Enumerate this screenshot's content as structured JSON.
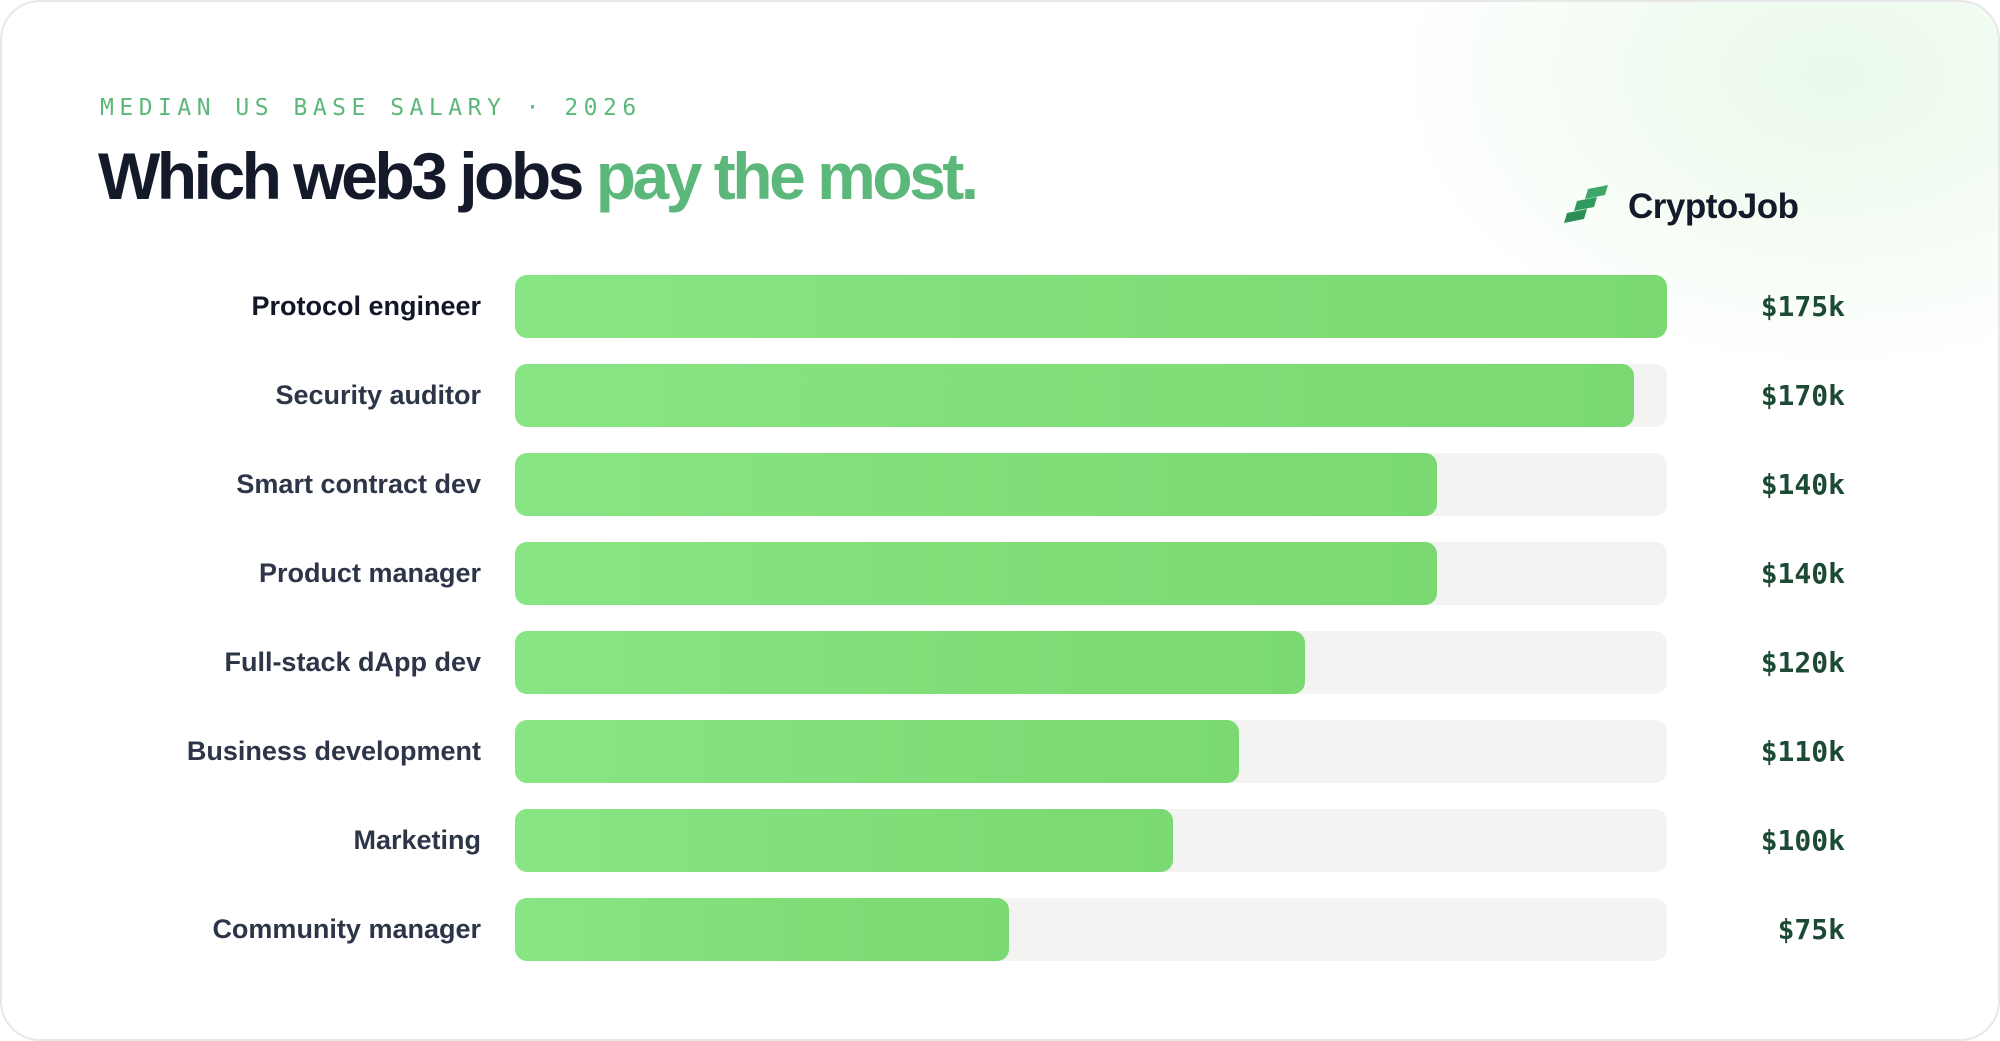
{
  "header": {
    "eyebrow": "MEDIAN US BASE SALARY · 2026",
    "title_main": "Which web3 jobs ",
    "title_accent": "pay the most."
  },
  "brand": {
    "name": "CryptoJob",
    "logo_icon": "stairs-logo-icon"
  },
  "colors": {
    "accent": "#5cb87a",
    "bar": "#82e07c",
    "track": "#f3f4f1",
    "title": "#151a2b"
  },
  "chart_data": {
    "type": "bar",
    "orientation": "horizontal",
    "title": "Which web3 jobs pay the most.",
    "subtitle": "MEDIAN US BASE SALARY · 2026",
    "categories": [
      "Protocol engineer",
      "Security auditor",
      "Smart contract dev",
      "Product manager",
      "Full-stack dApp dev",
      "Business development",
      "Marketing",
      "Community manager"
    ],
    "values": [
      175,
      170,
      140,
      140,
      120,
      110,
      100,
      75
    ],
    "value_labels": [
      "$175k",
      "$170k",
      "$140k",
      "$140k",
      "$120k",
      "$110k",
      "$100k",
      "$75k"
    ],
    "unit": "k USD",
    "xlim": [
      0,
      175
    ],
    "grid": false,
    "legend": "none"
  }
}
